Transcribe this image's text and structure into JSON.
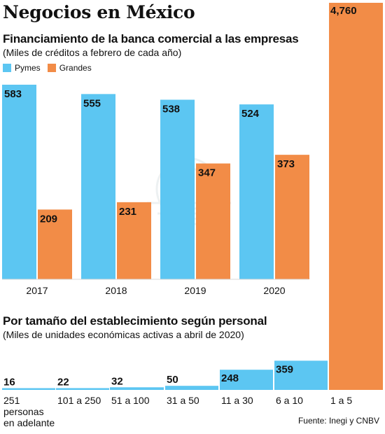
{
  "page": {
    "title": "Negocios en México",
    "source": "Fuente: Inegi y CNBV"
  },
  "colors": {
    "pymes": "#5cc6f2",
    "grandes": "#f28c47",
    "text": "#111111"
  },
  "chart_data": [
    {
      "type": "bar",
      "title": "Financiamiento de la banca comercial a las empresas",
      "subtitle": "(Miles de créditos a febrero de cada año)",
      "categories": [
        "2017",
        "2018",
        "2019",
        "2020"
      ],
      "series": [
        {
          "name": "Pymes",
          "values": [
            583,
            555,
            538,
            524
          ]
        },
        {
          "name": "Grandes",
          "values": [
            209,
            231,
            347,
            373
          ]
        }
      ],
      "value_labels": {
        "Pymes": [
          "583",
          "555",
          "538",
          "524"
        ],
        "Grandes": [
          "209",
          "231",
          "347",
          "373"
        ]
      },
      "legend": "top-left",
      "grid": false
    },
    {
      "type": "bar",
      "title": "Por tamaño del establecimiento según personal",
      "subtitle": "(Miles de unidades económicas activas a abril de 2020)",
      "categories": [
        "251 personas en adelante",
        "101 a 250",
        "51 a 100",
        "31 a 50",
        "11 a 30",
        "6 a 10",
        "1 a 5"
      ],
      "values": [
        16,
        22,
        32,
        50,
        248,
        359,
        4760
      ],
      "value_labels": [
        "16",
        "22",
        "32",
        "50",
        "248",
        "359",
        "4,760"
      ],
      "colors": [
        "#5cc6f2",
        "#5cc6f2",
        "#5cc6f2",
        "#5cc6f2",
        "#5cc6f2",
        "#5cc6f2",
        "#f28c47"
      ],
      "grid": false
    }
  ]
}
